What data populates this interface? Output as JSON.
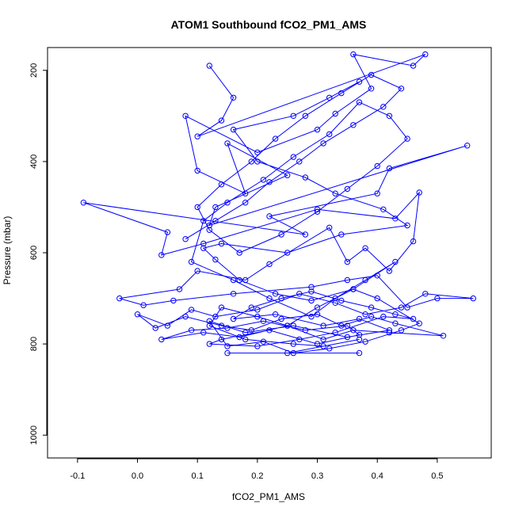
{
  "chart_data": {
    "type": "line",
    "title": "ATOM1 Southbound fCO2_PM1_AMS",
    "xlabel": "fCO2_PM1_AMS",
    "ylabel": "Pressure (mbar)",
    "xlim": [
      -0.15,
      0.59
    ],
    "ylim": [
      1050,
      150
    ],
    "y_reversed": true,
    "x_ticks": [
      -0.1,
      0.0,
      0.1,
      0.2,
      0.3,
      0.4,
      0.5
    ],
    "x_tick_labels": [
      "-0.1",
      "0.0",
      "0.1",
      "0.2",
      "0.3",
      "0.4",
      "0.5"
    ],
    "y_ticks": [
      200,
      400,
      600,
      800,
      1000
    ],
    "y_tick_labels": [
      "200",
      "400",
      "600",
      "800",
      "1000"
    ],
    "grid": false,
    "legend": "none",
    "colors": {
      "series": "#0000ff",
      "axis": "#000000",
      "background": "#ffffff"
    },
    "series": [
      {
        "marker": "open-circle",
        "x": [
          0.12,
          0.16,
          0.14,
          0.1,
          0.48,
          0.46,
          0.36,
          0.39,
          0.33,
          0.3,
          0.2,
          0.08,
          0.1,
          0.18,
          0.15,
          0.25,
          0.13,
          0.12,
          0.55,
          0.42,
          0.4,
          0.22,
          0.28,
          -0.09,
          0.05,
          0.04,
          0.11,
          0.3,
          0.43,
          0.47,
          0.46,
          0.42,
          0.38,
          0.35,
          0.32,
          0.22,
          0.18,
          0.1,
          0.07,
          -0.03,
          0.01,
          0.06,
          0.16,
          0.29,
          0.35,
          0.4,
          0.45,
          0.5,
          0.56,
          0.48,
          0.44,
          0.38,
          0.33,
          0.27,
          0.2,
          0.13,
          0.09,
          0.05,
          0.0,
          0.03,
          0.08,
          0.14,
          0.19,
          0.24,
          0.3,
          0.34,
          0.39,
          0.43,
          0.51,
          0.42,
          0.36,
          0.31,
          0.25,
          0.17,
          0.11,
          0.04,
          0.09,
          0.15,
          0.21,
          0.28,
          0.35,
          0.37,
          0.3,
          0.22,
          0.14,
          0.12,
          0.2,
          0.27,
          0.33,
          0.41,
          0.46,
          0.43,
          0.39,
          0.34,
          0.29,
          0.24,
          0.19,
          0.16,
          0.23,
          0.31,
          0.37,
          0.42,
          0.35,
          0.26,
          0.18,
          0.12,
          0.15,
          0.21,
          0.26,
          0.32,
          0.38,
          0.44,
          0.47,
          0.4,
          0.36,
          0.29,
          0.23,
          0.17,
          0.13,
          0.11,
          0.14,
          0.25,
          0.34,
          0.45,
          0.41,
          0.33,
          0.28,
          0.2,
          0.16,
          0.26,
          0.32,
          0.37
        ],
        "y": [
          190,
          260,
          310,
          345,
          165,
          190,
          165,
          240,
          295,
          330,
          380,
          300,
          420,
          470,
          360,
          430,
          500,
          540,
          365,
          415,
          470,
          520,
          560,
          490,
          555,
          605,
          580,
          505,
          525,
          468,
          575,
          640,
          590,
          620,
          545,
          625,
          660,
          640,
          680,
          700,
          715,
          705,
          690,
          675,
          660,
          650,
          720,
          700,
          700,
          690,
          720,
          735,
          710,
          690,
          725,
          740,
          725,
          760,
          735,
          765,
          740,
          760,
          770,
          745,
          735,
          760,
          740,
          755,
          782,
          775,
          770,
          790,
          760,
          785,
          775,
          790,
          770,
          765,
          750,
          770,
          760,
          780,
          800,
          770,
          790,
          800,
          805,
          790,
          775,
          740,
          745,
          735,
          720,
          705,
          685,
          700,
          720,
          745,
          735,
          760,
          745,
          770,
          785,
          760,
          775,
          750,
          805,
          795,
          820,
          810,
          795,
          770,
          755,
          700,
          680,
          705,
          690,
          660,
          615,
          590,
          580,
          600,
          560,
          540,
          505,
          470,
          435,
          400,
          330,
          300,
          260,
          225
        ]
      },
      {
        "marker": "open-circle",
        "x": [
          0.08,
          0.13,
          0.18,
          0.22,
          0.27,
          0.31,
          0.36,
          0.41,
          0.44,
          0.39,
          0.34,
          0.28,
          0.23,
          0.19,
          0.14,
          0.1,
          0.12,
          0.17,
          0.24,
          0.3,
          0.35,
          0.4,
          0.45,
          0.42,
          0.37,
          0.32,
          0.26,
          0.21,
          0.15,
          0.11,
          0.09,
          0.16,
          0.22,
          0.29,
          0.33,
          0.38,
          0.43,
          0.36,
          0.3,
          0.25,
          0.2,
          0.14,
          0.12,
          0.18,
          0.26,
          0.31,
          0.37,
          0.25,
          0.15,
          0.37
        ],
        "y": [
          570,
          530,
          490,
          445,
          400,
          360,
          320,
          280,
          240,
          210,
          250,
          300,
          350,
          400,
          450,
          500,
          550,
          600,
          560,
          510,
          460,
          410,
          350,
          300,
          270,
          340,
          390,
          440,
          490,
          530,
          620,
          660,
          700,
          740,
          700,
          660,
          620,
          680,
          720,
          760,
          740,
          720,
          760,
          790,
          800,
          805,
          790,
          820,
          820,
          820
        ]
      }
    ]
  }
}
